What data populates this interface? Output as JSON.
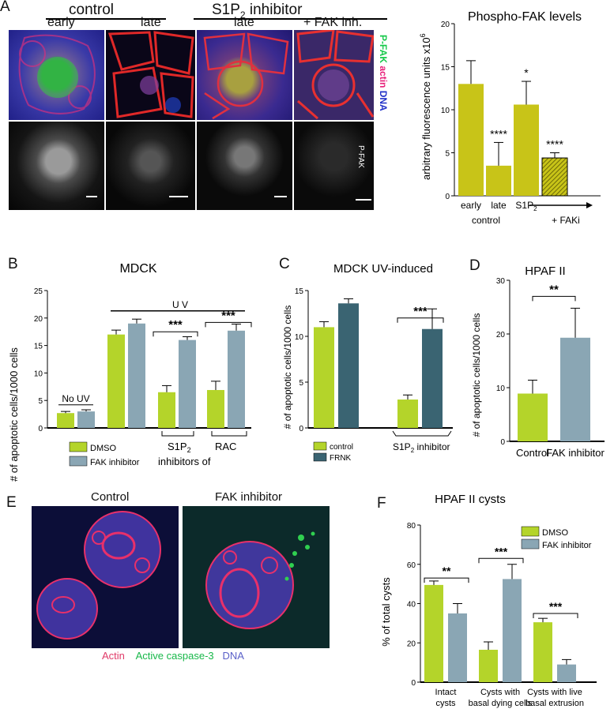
{
  "panels": {
    "A": {
      "letter": "A",
      "control_header": "control",
      "inhibitor_header_base": "S1P",
      "inhibitor_header_sub": "2",
      "inhibitor_header_rest": " inhibitor",
      "col_labels": [
        "early",
        "late",
        "late",
        "+ FAK inh."
      ],
      "stain_labels": {
        "pfak": "P-FAK",
        "actin": "actin",
        "dna": "DNA"
      },
      "bottom_row_label": "P-FAK",
      "colors": {
        "pfak": "#16c84a",
        "actin": "#e8207a",
        "dna": "#2030c8"
      }
    },
    "B": {
      "letter": "B"
    },
    "C": {
      "letter": "C"
    },
    "D": {
      "letter": "D"
    },
    "E": {
      "letter": "E",
      "col_labels": [
        "Control",
        "FAK inhibitor"
      ],
      "legend": {
        "actin": "Actin",
        "caspase": "Active caspase-3",
        "dna": "DNA"
      },
      "colors": {
        "actin": "#e03a68",
        "caspase": "#18b84a",
        "dna": "#5a60c8"
      }
    },
    "F": {
      "letter": "F"
    }
  },
  "chart_data": [
    {
      "id": "A-right",
      "type": "bar",
      "title": "Phospho-FAK levels",
      "ylabel": "arbitrary fluorescence units x10",
      "ylabel_exp": "6",
      "ylim": [
        0,
        20
      ],
      "yticks": [
        0,
        5,
        10,
        15,
        20
      ],
      "categories": [
        "early",
        "late",
        "S1P2",
        "+ FAKi"
      ],
      "tick_labels": [
        "early",
        "late",
        "S1P",
        ""
      ],
      "tick_label_sub": [
        "",
        "",
        "2",
        ""
      ],
      "group_labels": [
        "control",
        "+ FAKi"
      ],
      "values": [
        13.0,
        3.5,
        10.6,
        4.4
      ],
      "errors": [
        2.7,
        2.7,
        2.7,
        0.6
      ],
      "significance": [
        "",
        "****",
        "*",
        "****"
      ],
      "colors": {
        "bar": "#c8c418",
        "hatch": "#6e6a08"
      }
    },
    {
      "id": "B",
      "type": "bar",
      "title": "MDCK",
      "ylabel": "# of apoptotic cells/1000 cells",
      "ylim": [
        0,
        25
      ],
      "yticks": [
        0,
        5,
        10,
        15,
        20,
        25
      ],
      "series": [
        {
          "name": "DMSO",
          "values": [
            2.7,
            17.0,
            6.5,
            6.9
          ],
          "errors": [
            0.3,
            0.8,
            1.2,
            1.6
          ]
        },
        {
          "name": "FAK inhibitor",
          "values": [
            3.0,
            19.0,
            16.0,
            17.7
          ],
          "errors": [
            0.3,
            0.8,
            0.6,
            1.2
          ]
        }
      ],
      "annotations": {
        "no_uv": "No UV",
        "uv": "U V",
        "sig": [
          "***",
          "***"
        ]
      },
      "group_labels": {
        "s1p_base": "S1P",
        "s1p_sub": "2",
        "rac": "RAC",
        "inhibitors_of": "inhibitors of"
      },
      "legend": [
        "DMSO",
        "FAK inhibitor"
      ],
      "colors": {
        "dmso": "#b4d42a",
        "fak": "#8aa6b4"
      }
    },
    {
      "id": "C",
      "type": "bar",
      "title": "MDCK UV-induced",
      "ylabel": "# of apoptotic cells/1000 cells",
      "ylim": [
        0,
        15
      ],
      "yticks": [
        0,
        5,
        10,
        15
      ],
      "series": [
        {
          "name": "control",
          "values": [
            11.0,
            3.1
          ],
          "errors": [
            0.6,
            0.5
          ]
        },
        {
          "name": "FRNK",
          "values": [
            13.6,
            10.8
          ],
          "errors": [
            0.5,
            2.2
          ]
        }
      ],
      "annotations": {
        "sig": "***"
      },
      "group_labels": {
        "s1p_base": "S1P",
        "s1p_sub": "2",
        "s1p_rest": " inhibitor"
      },
      "legend": [
        "control",
        "FRNK"
      ],
      "colors": {
        "control": "#b4d42a",
        "frnk": "#3a6472"
      }
    },
    {
      "id": "D",
      "type": "bar",
      "title": "HPAF II",
      "ylabel": "# of apoptotic cells/1000 cells",
      "ylim": [
        0,
        30
      ],
      "yticks": [
        0,
        10,
        20,
        30
      ],
      "categories": [
        "Control",
        "FAK inhibitor"
      ],
      "values": [
        8.9,
        19.3
      ],
      "errors": [
        2.5,
        5.5
      ],
      "annotations": {
        "sig": "**"
      },
      "colors": {
        "control": "#b4d42a",
        "fak": "#8aa6b4"
      }
    },
    {
      "id": "F",
      "type": "bar",
      "title": "HPAF II cysts",
      "ylabel": "% of total cysts",
      "ylim": [
        0,
        80
      ],
      "yticks": [
        0,
        20,
        40,
        60,
        80
      ],
      "categories": [
        "Intact\ncysts",
        "Cysts with\nbasal dying cells",
        "Cysts with live\nbasal extrusion"
      ],
      "series": [
        {
          "name": "DMSO",
          "values": [
            49.5,
            16.5,
            30.5
          ],
          "errors": [
            2.0,
            4.0,
            2.0
          ]
        },
        {
          "name": "FAK inhibitor",
          "values": [
            35.0,
            52.5,
            9.0
          ],
          "errors": [
            5.0,
            7.5,
            2.5
          ]
        }
      ],
      "annotations": {
        "sig": [
          "**",
          "***",
          "***"
        ]
      },
      "legend": [
        "DMSO",
        "FAK inhibitor"
      ],
      "colors": {
        "dmso": "#b4d42a",
        "fak": "#8aa6b4"
      }
    }
  ]
}
